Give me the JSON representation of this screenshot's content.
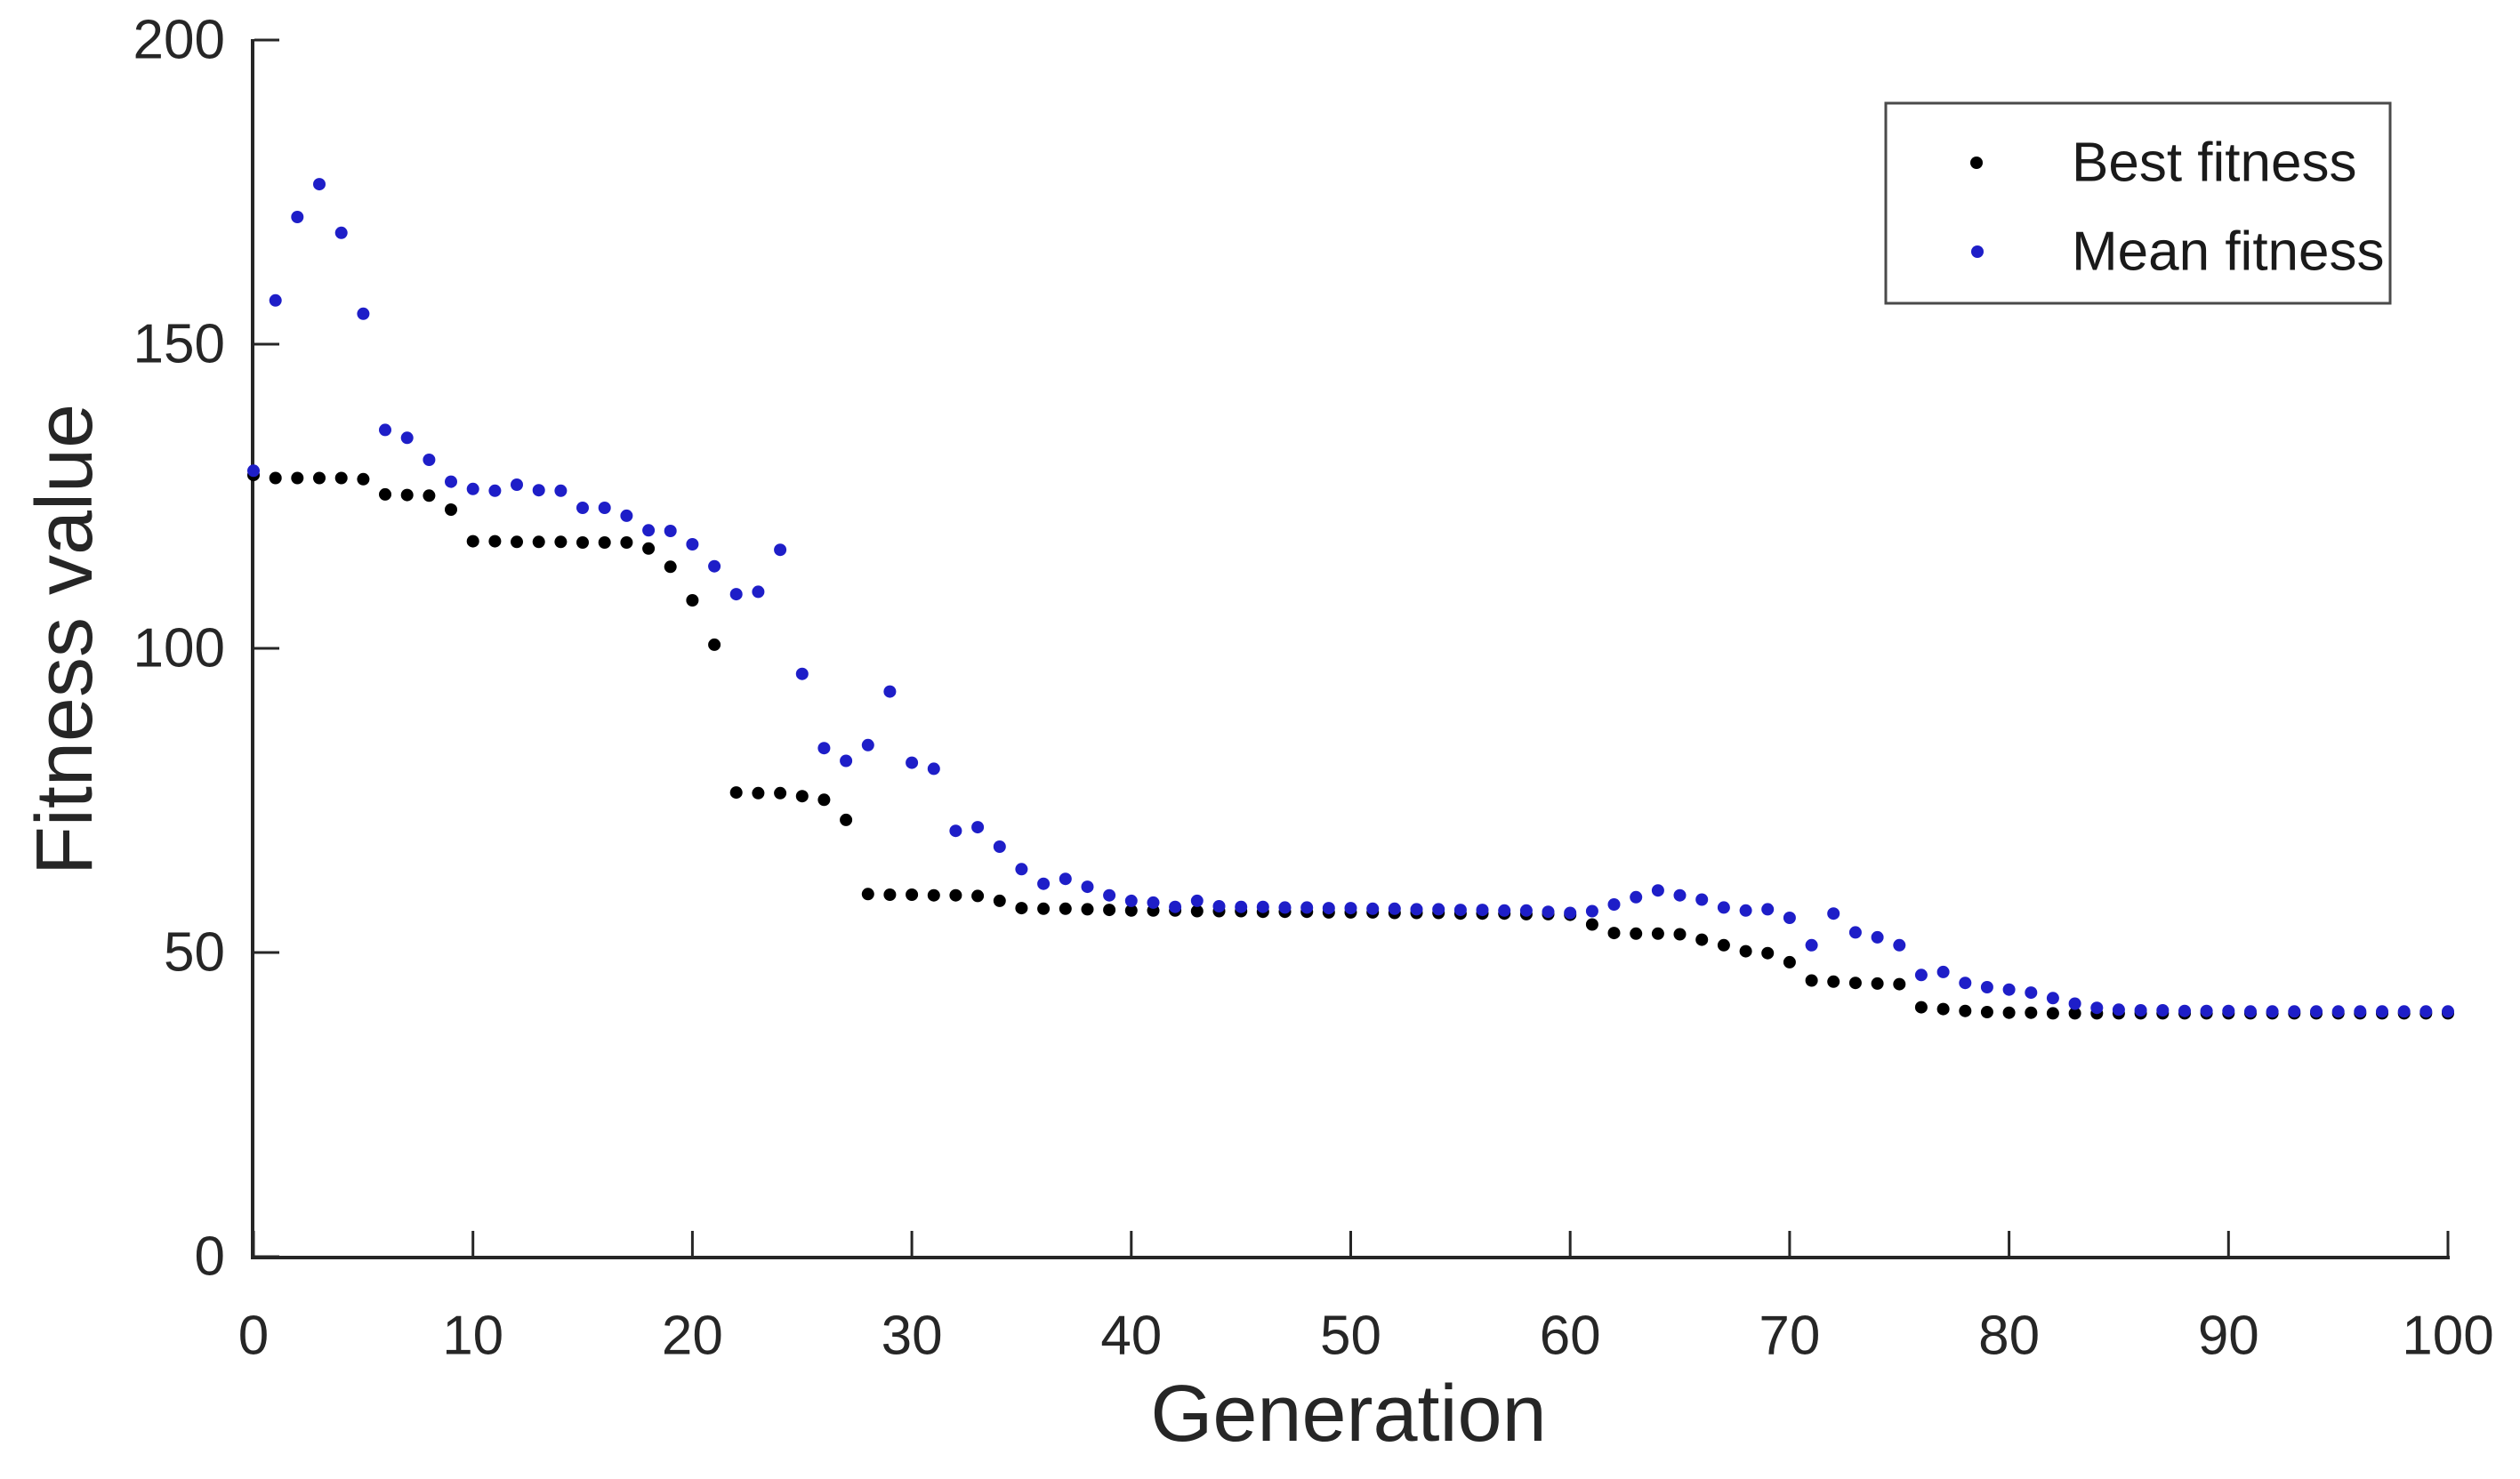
{
  "chart_data": {
    "type": "scatter",
    "title": "",
    "xlabel": "Generation",
    "ylabel": "Fitness value",
    "xlim": [
      0,
      100
    ],
    "ylim": [
      0,
      200
    ],
    "x_ticks": [
      0,
      10,
      20,
      30,
      40,
      50,
      60,
      70,
      80,
      90,
      100
    ],
    "y_ticks": [
      0,
      50,
      100,
      150,
      200
    ],
    "grid": false,
    "legend_position": "top-right",
    "axis_color": "#262626",
    "background_color": "#ffffff",
    "marker_style": "dot",
    "x": [
      0,
      1,
      2,
      3,
      4,
      5,
      6,
      7,
      8,
      9,
      10,
      11,
      12,
      13,
      14,
      15,
      16,
      17,
      18,
      19,
      20,
      21,
      22,
      23,
      24,
      25,
      26,
      27,
      28,
      29,
      30,
      31,
      32,
      33,
      34,
      35,
      36,
      37,
      38,
      39,
      40,
      41,
      42,
      43,
      44,
      45,
      46,
      47,
      48,
      49,
      50,
      51,
      52,
      53,
      54,
      55,
      56,
      57,
      58,
      59,
      60,
      61,
      62,
      63,
      64,
      65,
      66,
      67,
      68,
      69,
      70,
      71,
      72,
      73,
      74,
      75,
      76,
      77,
      78,
      79,
      80,
      81,
      82,
      83,
      84,
      85,
      86,
      87,
      88,
      89,
      90,
      91,
      92,
      93,
      94,
      95,
      96,
      97,
      98,
      99,
      100
    ],
    "series": [
      {
        "name": "Best fitness",
        "color": "#000000",
        "values": [
          128.5,
          128,
          128,
          128,
          128,
          127.8,
          125.3,
          125.2,
          125.1,
          122.8,
          117.6,
          117.6,
          117.5,
          117.5,
          117.5,
          117.4,
          117.4,
          117.4,
          116.4,
          113.4,
          107.9,
          100.6,
          76.3,
          76.2,
          76.2,
          75.7,
          75.1,
          71.8,
          59.6,
          59.5,
          59.5,
          59.4,
          59.4,
          59.3,
          58.5,
          57.3,
          57.2,
          57.2,
          57.1,
          57.0,
          56.9,
          56.9,
          56.9,
          56.8,
          56.8,
          56.8,
          56.7,
          56.7,
          56.7,
          56.6,
          56.6,
          56.6,
          56.5,
          56.5,
          56.5,
          56.4,
          56.4,
          56.4,
          56.3,
          56.3,
          56.2,
          54.6,
          53.2,
          53.1,
          53.1,
          53.0,
          52.1,
          51.2,
          50.2,
          49.9,
          48.4,
          45.4,
          45.2,
          45.0,
          44.9,
          44.8,
          41.0,
          40.7,
          40.4,
          40.2,
          40.1,
          40.1,
          40.0,
          40.0,
          40.0,
          40.0,
          40.0,
          40.0,
          40.0,
          40.0,
          40.0,
          40.0,
          40.0,
          40.0,
          40.0,
          40.0,
          40.0,
          40.0,
          40.0,
          40.0,
          40.0
        ]
      },
      {
        "name": "Mean fitness",
        "color": "#1e1ec8",
        "values": [
          129.2,
          157.2,
          170.9,
          176.3,
          168.3,
          155.0,
          135.9,
          134.6,
          131.0,
          127.4,
          126.2,
          125.9,
          126.9,
          126.0,
          125.9,
          123.1,
          123.1,
          121.8,
          119.4,
          119.3,
          117.1,
          113.5,
          108.9,
          109.3,
          116.2,
          95.8,
          83.6,
          81.5,
          84.1,
          92.9,
          81.2,
          80.2,
          70.0,
          70.6,
          67.4,
          63.7,
          61.3,
          62.1,
          60.8,
          59.4,
          58.5,
          58.2,
          57.5,
          58.5,
          57.6,
          57.5,
          57.5,
          57.4,
          57.4,
          57.3,
          57.3,
          57.2,
          57.2,
          57.1,
          57.1,
          57.0,
          57.0,
          56.9,
          56.9,
          56.7,
          56.5,
          56.8,
          57.9,
          59.1,
          60.2,
          59.4,
          58.7,
          57.4,
          56.9,
          57.1,
          55.7,
          51.2,
          56.4,
          53.3,
          52.5,
          51.2,
          46.3,
          46.8,
          45.0,
          44.3,
          43.9,
          43.4,
          42.5,
          41.6,
          40.9,
          40.6,
          40.5,
          40.5,
          40.4,
          40.4,
          40.4,
          40.3,
          40.3,
          40.3,
          40.3,
          40.3,
          40.3,
          40.3,
          40.3,
          40.3,
          40.3
        ]
      }
    ],
    "legend": {
      "entries": [
        {
          "label": "Best fitness",
          "marker": "dot-icon",
          "color": "#000000"
        },
        {
          "label": "Mean fitness",
          "marker": "dot-icon",
          "color": "#1e1ec8"
        }
      ]
    }
  }
}
